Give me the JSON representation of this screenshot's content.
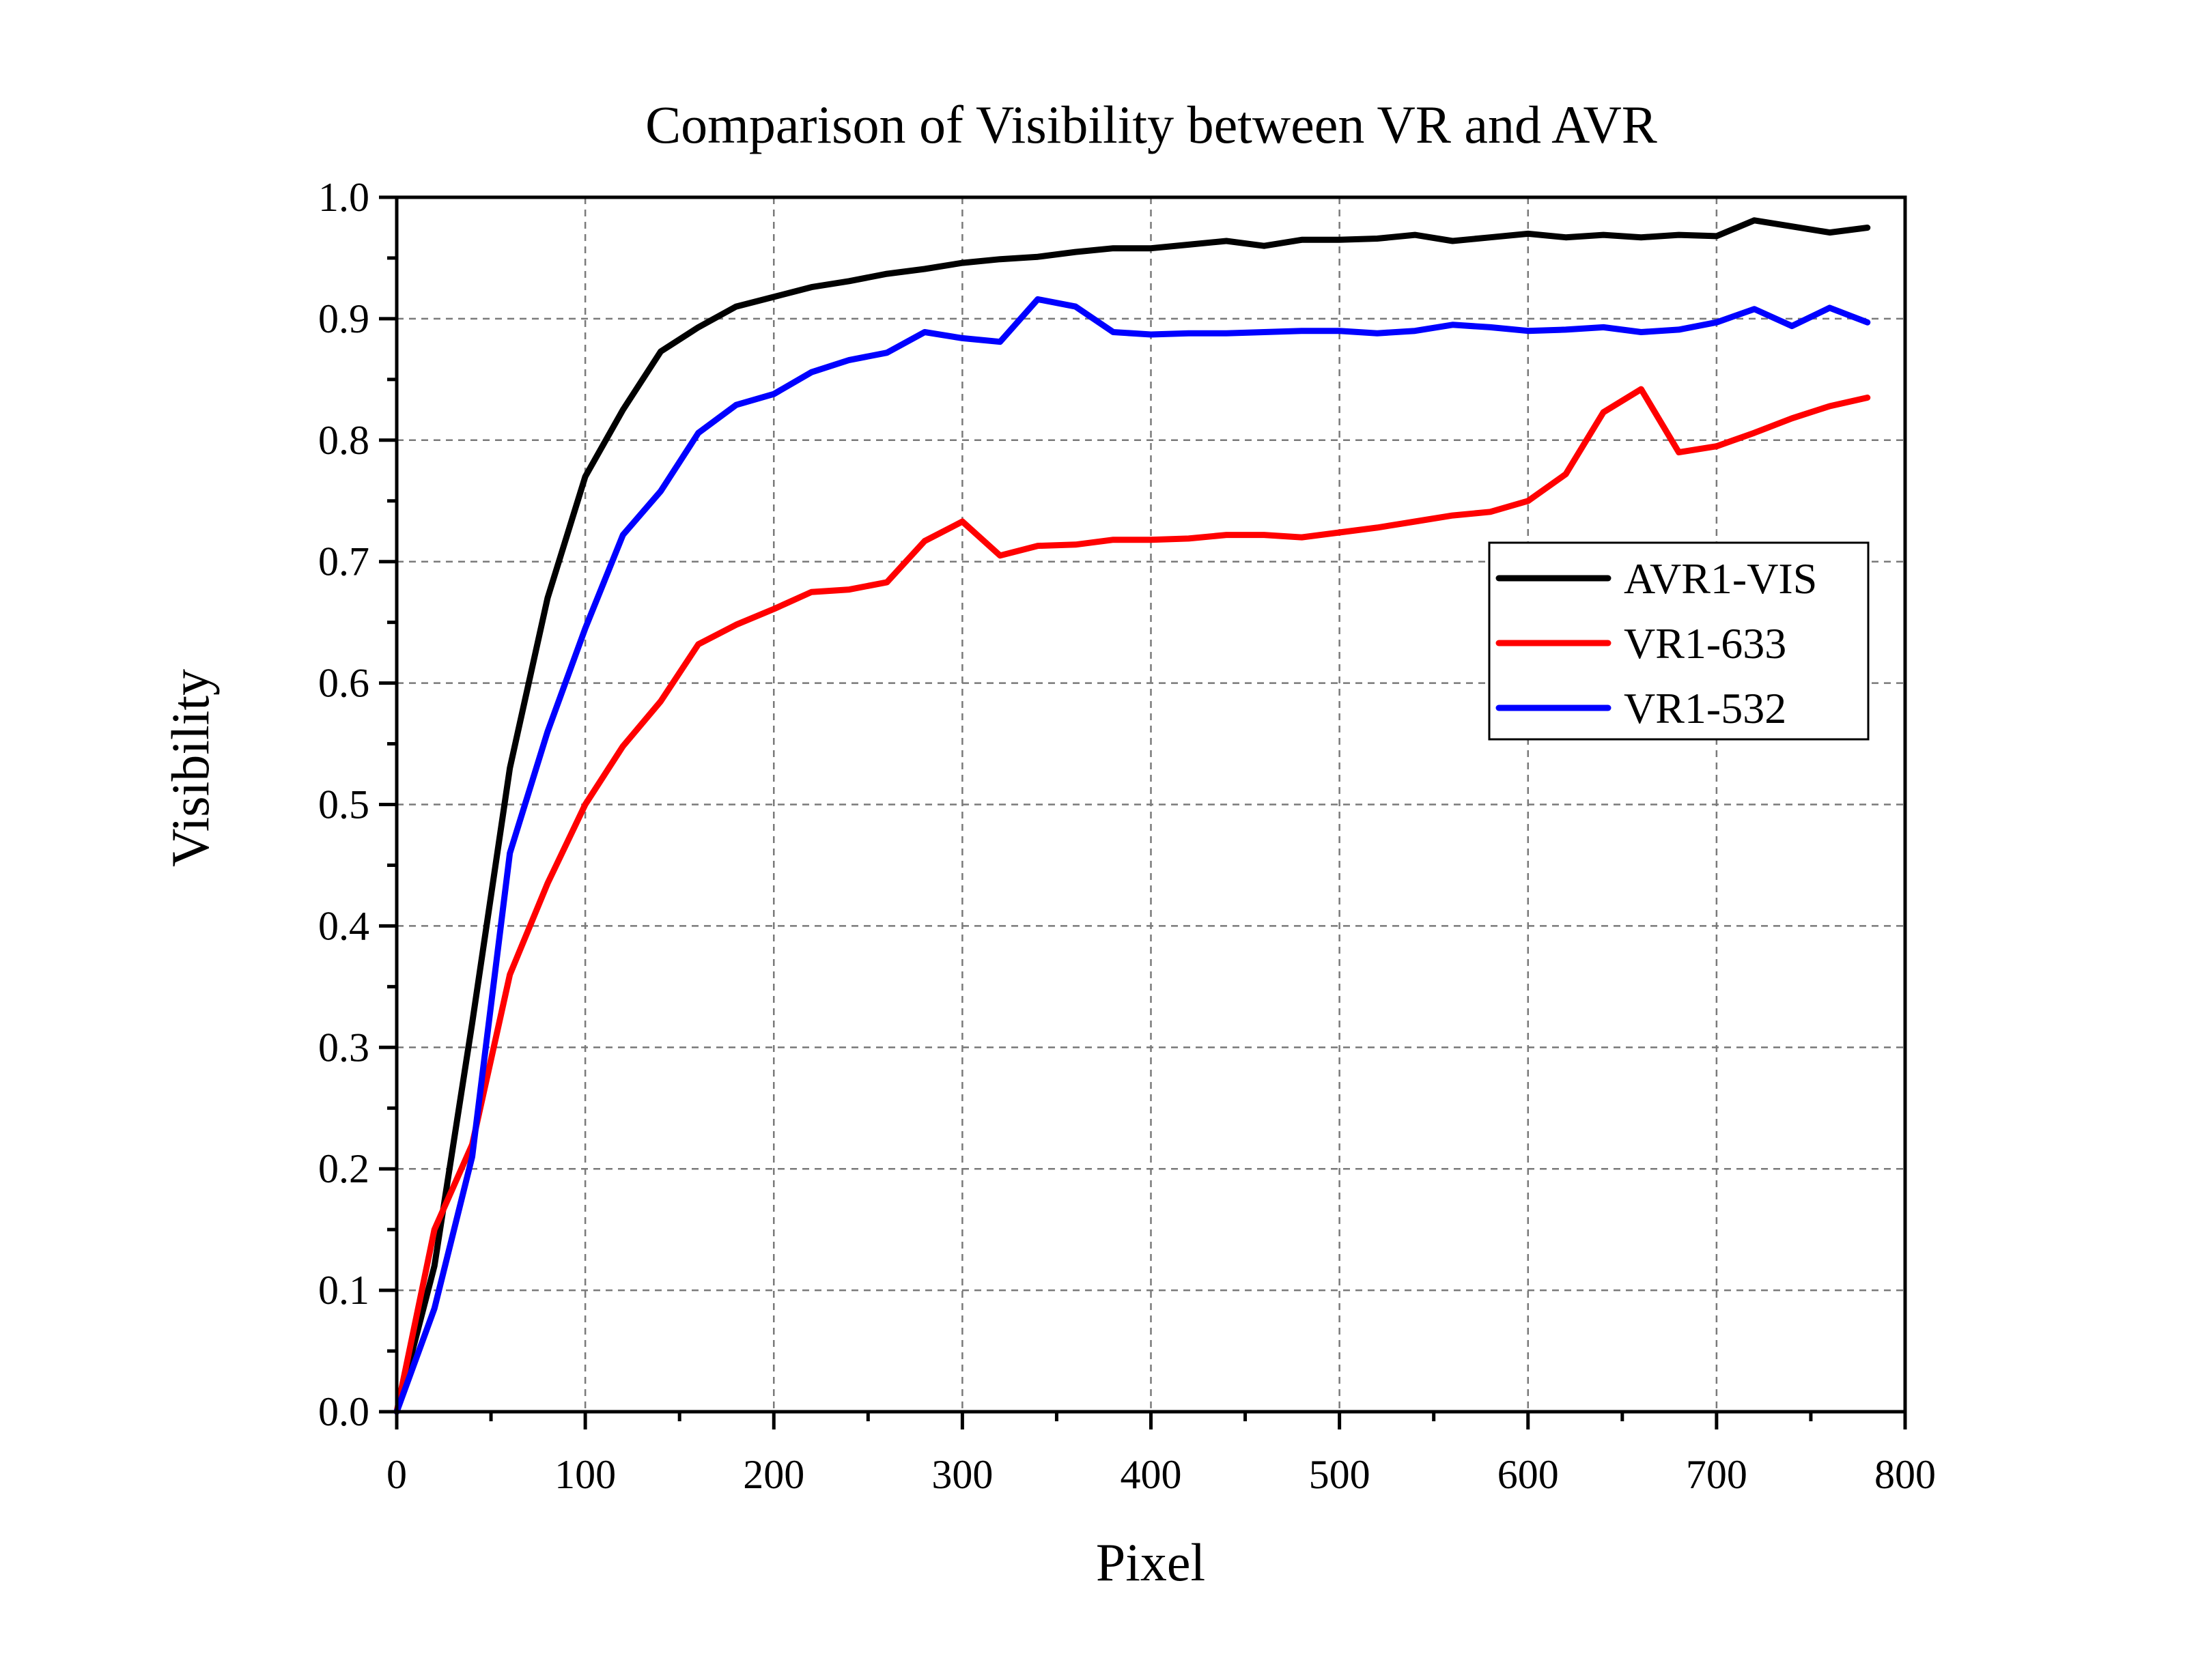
{
  "chart_data": {
    "type": "line",
    "title": "Comparison of Visibility between VR and AVR",
    "xlabel": "Pixel",
    "ylabel": "Visibility",
    "xlim": [
      0,
      800
    ],
    "ylim": [
      0,
      1.0
    ],
    "xticks": [
      "0",
      "100",
      "200",
      "300",
      "400",
      "500",
      "600",
      "700",
      "800"
    ],
    "yticks": [
      "0.0",
      "0.1",
      "0.2",
      "0.3",
      "0.4",
      "0.5",
      "0.6",
      "0.7",
      "0.8",
      "0.9",
      "1.0"
    ],
    "grid": true,
    "legend_position": "right",
    "x": [
      0,
      20,
      40,
      60,
      80,
      100,
      120,
      140,
      160,
      180,
      200,
      220,
      240,
      260,
      280,
      300,
      320,
      340,
      360,
      380,
      400,
      420,
      440,
      460,
      480,
      500,
      520,
      540,
      560,
      580,
      600,
      620,
      640,
      660,
      680,
      700,
      720,
      740,
      760,
      780
    ],
    "series": [
      {
        "name": "AVR1-VIS",
        "color": "#000000",
        "values": [
          0.0,
          0.12,
          0.32,
          0.53,
          0.67,
          0.77,
          0.825,
          0.873,
          0.893,
          0.91,
          0.918,
          0.926,
          0.931,
          0.937,
          0.941,
          0.946,
          0.949,
          0.951,
          0.955,
          0.958,
          0.958,
          0.961,
          0.964,
          0.96,
          0.965,
          0.965,
          0.966,
          0.969,
          0.964,
          0.967,
          0.97,
          0.967,
          0.969,
          0.967,
          0.969,
          0.968,
          0.981,
          0.976,
          0.971,
          0.975
        ]
      },
      {
        "name": "VR1-633",
        "color": "#ff0000",
        "values": [
          0.0,
          0.15,
          0.22,
          0.36,
          0.435,
          0.5,
          0.548,
          0.585,
          0.632,
          0.648,
          0.661,
          0.675,
          0.677,
          0.683,
          0.717,
          0.733,
          0.705,
          0.713,
          0.714,
          0.718,
          0.718,
          0.719,
          0.722,
          0.722,
          0.72,
          0.724,
          0.728,
          0.733,
          0.738,
          0.741,
          0.75,
          0.772,
          0.823,
          0.842,
          0.79,
          0.795,
          0.806,
          0.818,
          0.828,
          0.835
        ]
      },
      {
        "name": "VR1-532",
        "color": "#0000ff",
        "values": [
          0.0,
          0.085,
          0.21,
          0.46,
          0.56,
          0.645,
          0.722,
          0.758,
          0.806,
          0.829,
          0.838,
          0.856,
          0.866,
          0.872,
          0.889,
          0.884,
          0.881,
          0.916,
          0.91,
          0.889,
          0.887,
          0.888,
          0.888,
          0.889,
          0.89,
          0.89,
          0.888,
          0.89,
          0.895,
          0.893,
          0.89,
          0.891,
          0.893,
          0.889,
          0.891,
          0.897,
          0.908,
          0.894,
          0.909,
          0.897
        ]
      }
    ]
  }
}
